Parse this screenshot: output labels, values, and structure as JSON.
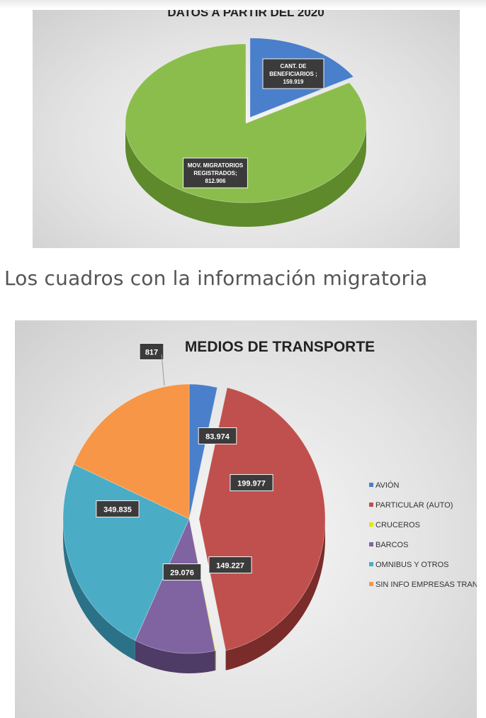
{
  "caption": "Los cuadros con la información migratoria",
  "chart_data": [
    {
      "type": "pie",
      "title": "DATOS A PARTIR DEL 2020",
      "categories": [
        "CANT. DE BENEFICIARIOS",
        "MOV. MIGRATORIOS REGISTRADOS"
      ],
      "values": [
        159919,
        812906
      ],
      "value_labels": [
        "159.919",
        "812.906"
      ],
      "label_lines": [
        [
          "CANT. DE",
          "BENEFICIARIOS ;"
        ],
        [
          "MOV. MIGRATORIOS",
          "REGISTRADOS;"
        ]
      ],
      "colors": [
        "#4a7fcb",
        "#8bbd4c"
      ],
      "dark_colors": [
        "#2e5690",
        "#5e8a2c"
      ],
      "legend": false
    },
    {
      "type": "pie",
      "title": "MEDIOS DE TRANSPORTE",
      "categories": [
        "AVIÓN",
        "PARTICULAR (AUTO)",
        "CRUCEROS",
        "BARCOS",
        "OMNIBUS Y OTROS",
        "SIN INFO EMPRESAS TRANSP."
      ],
      "values": [
        29076,
        349835,
        817,
        83974,
        199977,
        149227
      ],
      "value_labels": [
        "29.076",
        "349.835",
        "817",
        "83.974",
        "199.977",
        "149.227"
      ],
      "colors": [
        "#4a7fcb",
        "#c0504d",
        "#e6e600",
        "#8064a2",
        "#4bacc6",
        "#f79646"
      ],
      "dark_colors": [
        "#1f3a5f",
        "#7a2c2a",
        "#8a8a00",
        "#4e3b66",
        "#2b7288",
        "#a85f22"
      ],
      "legend": true,
      "legend_position": "right"
    }
  ]
}
